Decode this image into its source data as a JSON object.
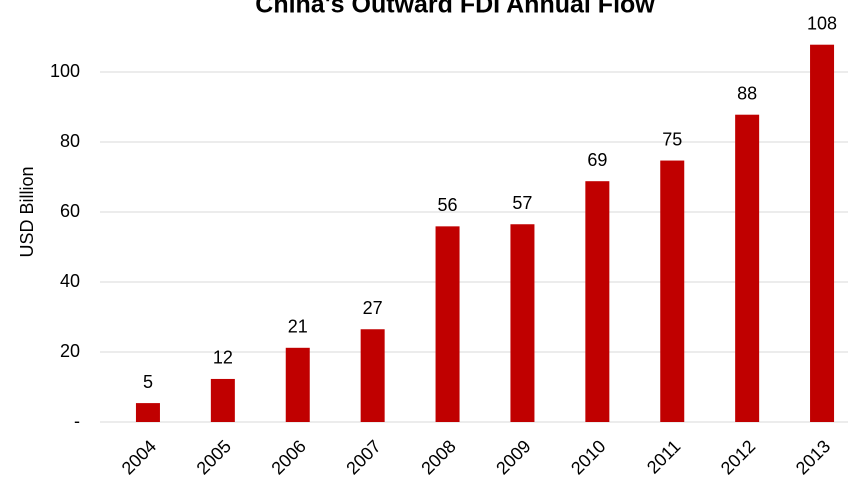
{
  "chart_data": {
    "type": "bar",
    "title": "China's Outward FDI Annual Flow",
    "y_label": "USD Billion",
    "categories": [
      "2004",
      "2005",
      "2006",
      "2007",
      "2008",
      "2009",
      "2010",
      "2011",
      "2012",
      "2013"
    ],
    "values": [
      5.4,
      12.3,
      21.2,
      26.5,
      55.9,
      56.5,
      68.8,
      74.7,
      87.8,
      107.8
    ],
    "value_labels": [
      "5",
      "12",
      "21",
      "27",
      "56",
      "57",
      "69",
      "75",
      "88",
      "108"
    ],
    "color": "#c00000",
    "ylim": [
      0,
      120
    ],
    "yticks": [
      {
        "value": 0,
        "label": "-"
      },
      20,
      40,
      60,
      80,
      100
    ],
    "grid": true
  }
}
